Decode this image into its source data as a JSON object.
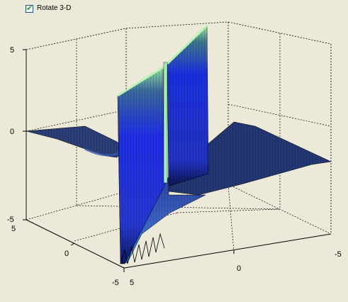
{
  "toolbar": {
    "rotate_label": "Rotate 3-D",
    "rotate_checked": true
  },
  "axes": {
    "z_ticks": [
      "5",
      "0",
      "-5"
    ],
    "y_ticks": [
      "5",
      "0",
      "-5"
    ],
    "x_ticks": [
      "5",
      "0",
      "-5"
    ]
  },
  "colors": {
    "background": "#ece9d8",
    "surface_dark": "#1a2a5a",
    "surface_mid": "#2a46a8",
    "surface_bright": "#1d2df0",
    "surface_top": "#8ee8a0",
    "edge": "#000000"
  }
}
